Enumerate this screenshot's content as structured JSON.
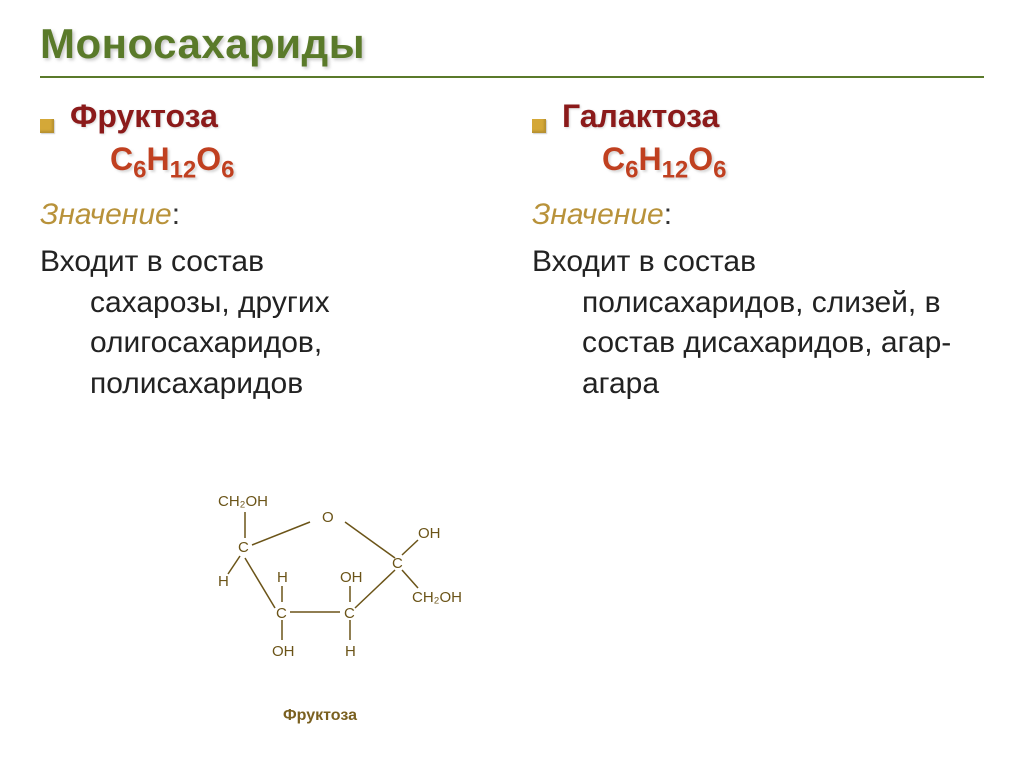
{
  "title": "Моносахариды",
  "left": {
    "name": "Фруктоза",
    "formula_html": "C<sub>6</sub>H<sub>12</sub>O<sub>6</sub>",
    "meaning_label": "Значение",
    "body_line1": "Входит в состав",
    "body_rest": "сахарозы, других олигосахаридов, полисахаридов"
  },
  "right": {
    "name": "Галактоза",
    "formula_html": "C<sub>6</sub>H<sub>12</sub>O<sub>6</sub>",
    "meaning_label": "Значение",
    "body_line1": "Входит в состав",
    "body_rest": "полисахаридов, слизей, в состав дисахаридов, агар-агара"
  },
  "diagram": {
    "caption": "Фруктоза",
    "atoms": {
      "ch2oh_top": "CH₂OH",
      "o_ring": "O",
      "c": "C",
      "h": "H",
      "oh": "OH",
      "ch2oh_right": "CH₂OH"
    },
    "colors": {
      "line": "#6b5418",
      "text": "#6b5418"
    }
  },
  "styling": {
    "title_color": "#5a7a2a",
    "subtitle_color": "#8b1a1a",
    "formula_color": "#c04020",
    "meaning_color": "#b8923a",
    "bullet_color": "#d4a838",
    "body_color": "#222222",
    "background": "#ffffff",
    "title_fontsize": 42,
    "subtitle_fontsize": 32,
    "formula_fontsize": 32,
    "body_fontsize": 30
  }
}
